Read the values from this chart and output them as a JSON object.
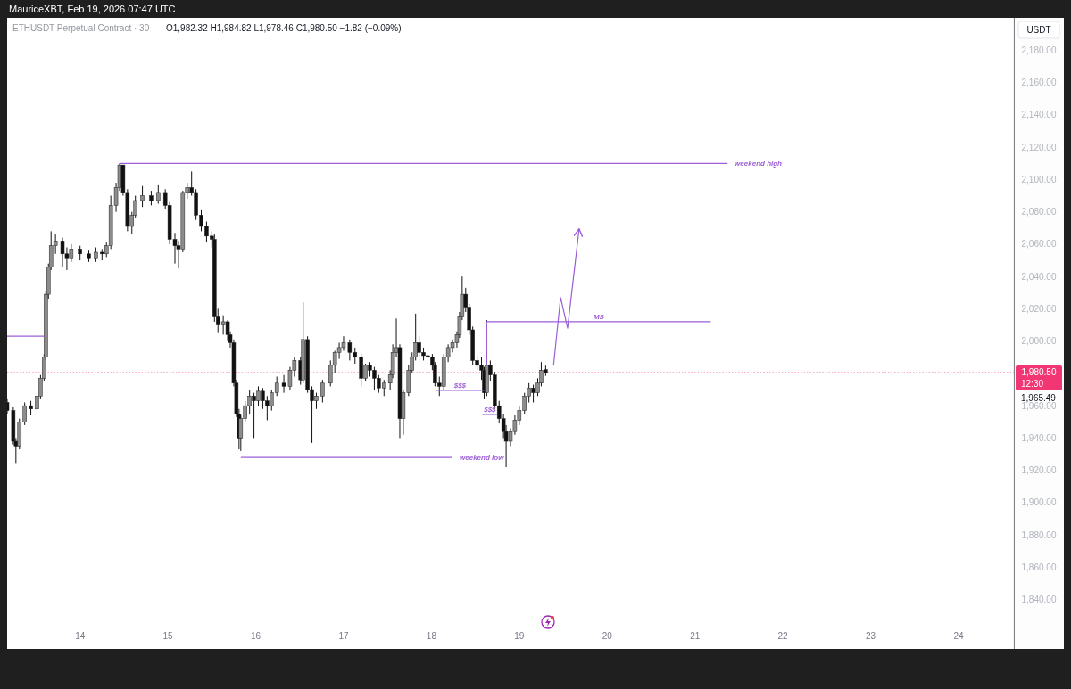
{
  "chart_data": {
    "type": "candlestick",
    "title": "ETHUSDT Perpetual Contract · 30",
    "subtitle": "O1,982.32 H1,984.82 L1,978.46 C1,980.50 −1.82 (−0.09%)",
    "ylabel": "USDT",
    "x": [
      13.17,
      13.24,
      13.27,
      13.31,
      13.37,
      13.44,
      13.51,
      13.55,
      13.59,
      13.61,
      13.64,
      13.67,
      13.72,
      13.8,
      13.85,
      13.9,
      14.0,
      14.1,
      14.18,
      14.25,
      14.3,
      14.35,
      14.41,
      14.45,
      14.49,
      14.54,
      14.59,
      14.63,
      14.71,
      14.81,
      14.89,
      14.97,
      15.02,
      15.08,
      15.12,
      15.17,
      15.22,
      15.27,
      15.32,
      15.38,
      15.44,
      15.5,
      15.53,
      15.57,
      15.63,
      15.68,
      15.71,
      15.75,
      15.78,
      15.81,
      15.83,
      15.88,
      15.93,
      15.98,
      16.03,
      16.08,
      16.13,
      16.18,
      16.24,
      16.32,
      16.39,
      16.44,
      16.51,
      16.54,
      16.59,
      16.64,
      16.69,
      16.76,
      16.85,
      16.9,
      16.95,
      17.0,
      17.07,
      17.13,
      17.2,
      17.25,
      17.3,
      17.35,
      17.4,
      17.46,
      17.53,
      17.56,
      17.6,
      17.64,
      17.68,
      17.74,
      17.78,
      17.82,
      17.86,
      17.91,
      17.96,
      18.01,
      18.04,
      18.09,
      18.14,
      18.19,
      18.24,
      18.29,
      18.32,
      18.35,
      18.39,
      18.43,
      18.47,
      18.52,
      18.57,
      18.6,
      18.63,
      18.67,
      18.72,
      18.77,
      18.82,
      18.85,
      18.9,
      18.95,
      19.0,
      19.06,
      19.11,
      19.16,
      19.21,
      19.25,
      19.3
    ],
    "ohlc": [
      [
        1962,
        1964,
        1955,
        1957
      ],
      [
        1957,
        1959,
        1936,
        1938
      ],
      [
        1938,
        1940,
        1924,
        1935
      ],
      [
        1935,
        1952,
        1933,
        1950
      ],
      [
        1950,
        1962,
        1948,
        1960
      ],
      [
        1960,
        1963,
        1954,
        1958
      ],
      [
        1958,
        1968,
        1956,
        1966
      ],
      [
        1966,
        1979,
        1964,
        1977
      ],
      [
        1977,
        1992,
        1975,
        1990
      ],
      [
        1990,
        2031,
        1988,
        2029
      ],
      [
        2029,
        2048,
        2026,
        2046
      ],
      [
        2046,
        2068,
        2044,
        2059
      ],
      [
        2059,
        2066,
        2054,
        2062
      ],
      [
        2062,
        2064,
        2046,
        2054
      ],
      [
        2054,
        2058,
        2044,
        2051
      ],
      [
        2051,
        2060,
        2049,
        2057
      ],
      [
        2057,
        2059,
        2050,
        2054
      ],
      [
        2054,
        2056,
        2049,
        2051
      ],
      [
        2051,
        2058,
        2049,
        2055
      ],
      [
        2055,
        2057,
        2050,
        2054
      ],
      [
        2054,
        2061,
        2052,
        2059
      ],
      [
        2059,
        2090,
        2057,
        2084
      ],
      [
        2084,
        2098,
        2080,
        2095
      ],
      [
        2095,
        2110,
        2093,
        2109
      ],
      [
        2109,
        2109,
        2090,
        2092
      ],
      [
        2092,
        2094,
        2068,
        2071
      ],
      [
        2071,
        2080,
        2066,
        2078
      ],
      [
        2078,
        2090,
        2076,
        2087
      ],
      [
        2087,
        2096,
        2083,
        2090
      ],
      [
        2090,
        2093,
        2084,
        2087
      ],
      [
        2087,
        2097,
        2085,
        2092
      ],
      [
        2092,
        2094,
        2082,
        2084
      ],
      [
        2084,
        2086,
        2060,
        2063
      ],
      [
        2063,
        2067,
        2048,
        2059
      ],
      [
        2059,
        2062,
        2045,
        2057
      ],
      [
        2057,
        2093,
        2055,
        2092
      ],
      [
        2092,
        2098,
        2088,
        2095
      ],
      [
        2095,
        2105,
        2090,
        2092
      ],
      [
        2092,
        2094,
        2075,
        2078
      ],
      [
        2078,
        2081,
        2068,
        2071
      ],
      [
        2071,
        2074,
        2061,
        2065
      ],
      [
        2065,
        2068,
        2058,
        2063
      ],
      [
        2063,
        2066,
        2012,
        2015
      ],
      [
        2015,
        2020,
        2005,
        2010
      ],
      [
        2010,
        2016,
        2004,
        2012
      ],
      [
        2012,
        2013,
        2000,
        2004
      ],
      [
        2004,
        2006,
        1996,
        1999
      ],
      [
        1999,
        2001,
        1972,
        1974
      ],
      [
        1974,
        1976,
        1953,
        1955
      ],
      [
        1955,
        1958,
        1933,
        1940
      ],
      [
        1940,
        1954,
        1932,
        1952
      ],
      [
        1952,
        1963,
        1950,
        1960
      ],
      [
        1960,
        1970,
        1955,
        1966
      ],
      [
        1966,
        1968,
        1940,
        1963
      ],
      [
        1963,
        1972,
        1960,
        1969
      ],
      [
        1969,
        1971,
        1958,
        1963
      ],
      [
        1963,
        1966,
        1951,
        1960
      ],
      [
        1960,
        1970,
        1957,
        1968
      ],
      [
        1968,
        1978,
        1966,
        1974
      ],
      [
        1974,
        1979,
        1968,
        1972
      ],
      [
        1972,
        1984,
        1970,
        1982
      ],
      [
        1982,
        1990,
        1978,
        1988
      ],
      [
        1988,
        1990,
        1973,
        1976
      ],
      [
        1976,
        2024,
        1974,
        2001
      ],
      [
        2001,
        2003,
        1968,
        1970
      ],
      [
        1970,
        1972,
        1937,
        1963
      ],
      [
        1963,
        1968,
        1958,
        1966
      ],
      [
        1966,
        1976,
        1962,
        1974
      ],
      [
        1974,
        1988,
        1972,
        1985
      ],
      [
        1985,
        1994,
        1980,
        1993
      ],
      [
        1993,
        1999,
        1989,
        1996
      ],
      [
        1996,
        2003,
        1994,
        1999
      ],
      [
        1999,
        2001,
        1988,
        1993
      ],
      [
        1993,
        1996,
        1986,
        1990
      ],
      [
        1990,
        1992,
        1972,
        1977
      ],
      [
        1977,
        1986,
        1975,
        1985
      ],
      [
        1985,
        1987,
        1978,
        1982
      ],
      [
        1982,
        1984,
        1970,
        1977
      ],
      [
        1977,
        1979,
        1968,
        1971
      ],
      [
        1971,
        1976,
        1966,
        1974
      ],
      [
        1974,
        1982,
        1970,
        1979
      ],
      [
        1979,
        1998,
        1977,
        1993
      ],
      [
        1993,
        2014,
        1990,
        1996
      ],
      [
        1996,
        1998,
        1940,
        1952
      ],
      [
        1952,
        1970,
        1942,
        1968
      ],
      [
        1968,
        1985,
        1966,
        1982
      ],
      [
        1982,
        1993,
        1980,
        1990
      ],
      [
        1990,
        2017,
        1988,
        1999
      ],
      [
        1999,
        2003,
        1990,
        1993
      ],
      [
        1993,
        1996,
        1988,
        1991
      ],
      [
        1991,
        1995,
        1985,
        1990
      ],
      [
        1990,
        1992,
        1982,
        1985
      ],
      [
        1985,
        1987,
        1972,
        1974
      ],
      [
        1974,
        1978,
        1966,
        1972
      ],
      [
        1972,
        1992,
        1970,
        1990
      ],
      [
        1990,
        1998,
        1987,
        1996
      ],
      [
        1996,
        2001,
        1993,
        1999
      ],
      [
        1999,
        2006,
        1996,
        2004
      ],
      [
        2004,
        2018,
        2002,
        2015
      ],
      [
        2015,
        2040,
        2013,
        2029
      ],
      [
        2029,
        2033,
        2018,
        2021
      ],
      [
        2021,
        2023,
        2004,
        2007
      ],
      [
        2007,
        2009,
        1985,
        1988
      ],
      [
        1988,
        1991,
        1982,
        1985
      ],
      [
        1985,
        1990,
        1976,
        1982
      ],
      [
        1982,
        1984,
        1964,
        1968
      ],
      [
        1968,
        2013,
        1966,
        1985
      ],
      [
        1985,
        1988,
        1975,
        1979
      ],
      [
        1979,
        1981,
        1958,
        1960
      ],
      [
        1960,
        1963,
        1949,
        1952
      ],
      [
        1952,
        1955,
        1940,
        1944
      ],
      [
        1944,
        1948,
        1922,
        1938
      ],
      [
        1938,
        1946,
        1935,
        1944
      ],
      [
        1944,
        1954,
        1942,
        1951
      ],
      [
        1951,
        1960,
        1948,
        1957
      ],
      [
        1957,
        1968,
        1955,
        1966
      ],
      [
        1966,
        1974,
        1962,
        1971
      ],
      [
        1971,
        1973,
        1962,
        1968
      ],
      [
        1968,
        1977,
        1966,
        1974
      ],
      [
        1974,
        1987,
        1972,
        1982
      ],
      [
        1982.32,
        1984.82,
        1978.46,
        1980.5
      ]
    ],
    "series": [
      {
        "type": "line",
        "color": "#9c5fd6",
        "x": [
          13.17,
          13.59
        ],
        "values": [
          2003,
          2003
        ]
      },
      {
        "type": "line",
        "name": "weekend high",
        "color": "#9c5fd6",
        "x": [
          14.45,
          21.37
        ],
        "values": [
          2110,
          2110
        ]
      },
      {
        "type": "line",
        "name": "weekend low",
        "color": "#9c5fd6",
        "x": [
          15.83,
          18.24
        ],
        "values": [
          1928,
          1928
        ]
      },
      {
        "type": "line",
        "name": "MS",
        "color": "#9c5fd6",
        "x": [
          18.63,
          18.63,
          21.18
        ],
        "values": [
          1985,
          2012,
          2012
        ]
      },
      {
        "type": "line",
        "name": "$$$",
        "color": "#9c5fd6",
        "x": [
          18.05,
          18.6
        ],
        "values": [
          1969.5,
          1969.5
        ]
      },
      {
        "type": "line",
        "name": "$$$",
        "color": "#9c5fd6",
        "x": [
          18.58,
          18.75
        ],
        "values": [
          1954.6,
          1954.6
        ]
      },
      {
        "type": "line",
        "color": "#9c5fd6",
        "x": [
          19.39,
          19.47,
          19.55,
          19.68
        ],
        "values": [
          1985,
          2027,
          2008,
          2069
        ]
      }
    ],
    "xlim": [
      13.17,
      24.63
    ],
    "ylim": [
      1810,
      2199
    ],
    "xticks": [
      14,
      15,
      16,
      17,
      18,
      19,
      20,
      21,
      22,
      23,
      24
    ],
    "yticks": [
      {
        "value": 1840,
        "label": "1,840.00"
      },
      {
        "value": 1860,
        "label": "1,860.00"
      },
      {
        "value": 1880,
        "label": "1,880.00"
      },
      {
        "value": 1900,
        "label": "1,900.00"
      },
      {
        "value": 1920,
        "label": "1,920.00"
      },
      {
        "value": 1940,
        "label": "1,940.00"
      },
      {
        "value": 1960,
        "label": "1,960.00"
      },
      {
        "value": 2000,
        "label": "2,000.00"
      },
      {
        "value": 2020,
        "label": "2,020.00"
      },
      {
        "value": 2040,
        "label": "2,040.00"
      },
      {
        "value": 2060,
        "label": "2,060.00"
      },
      {
        "value": 2080,
        "label": "2,080.00"
      },
      {
        "value": 2100,
        "label": "2,100.00"
      },
      {
        "value": 2120,
        "label": "2,120.00"
      },
      {
        "value": 2140,
        "label": "2,140.00"
      },
      {
        "value": 2160,
        "label": "2,160.00"
      },
      {
        "value": 2180,
        "label": "2,180.00"
      }
    ],
    "ref_lines": [
      {
        "axis": "y",
        "value": 1980.5,
        "label": "1,980.50",
        "color": "#f23673",
        "line_style": "dotted"
      }
    ],
    "annotations": [
      "MauriceXBT, Feb 19, 2026 07:47 UTC",
      "12:30",
      "1,965.49"
    ]
  }
}
